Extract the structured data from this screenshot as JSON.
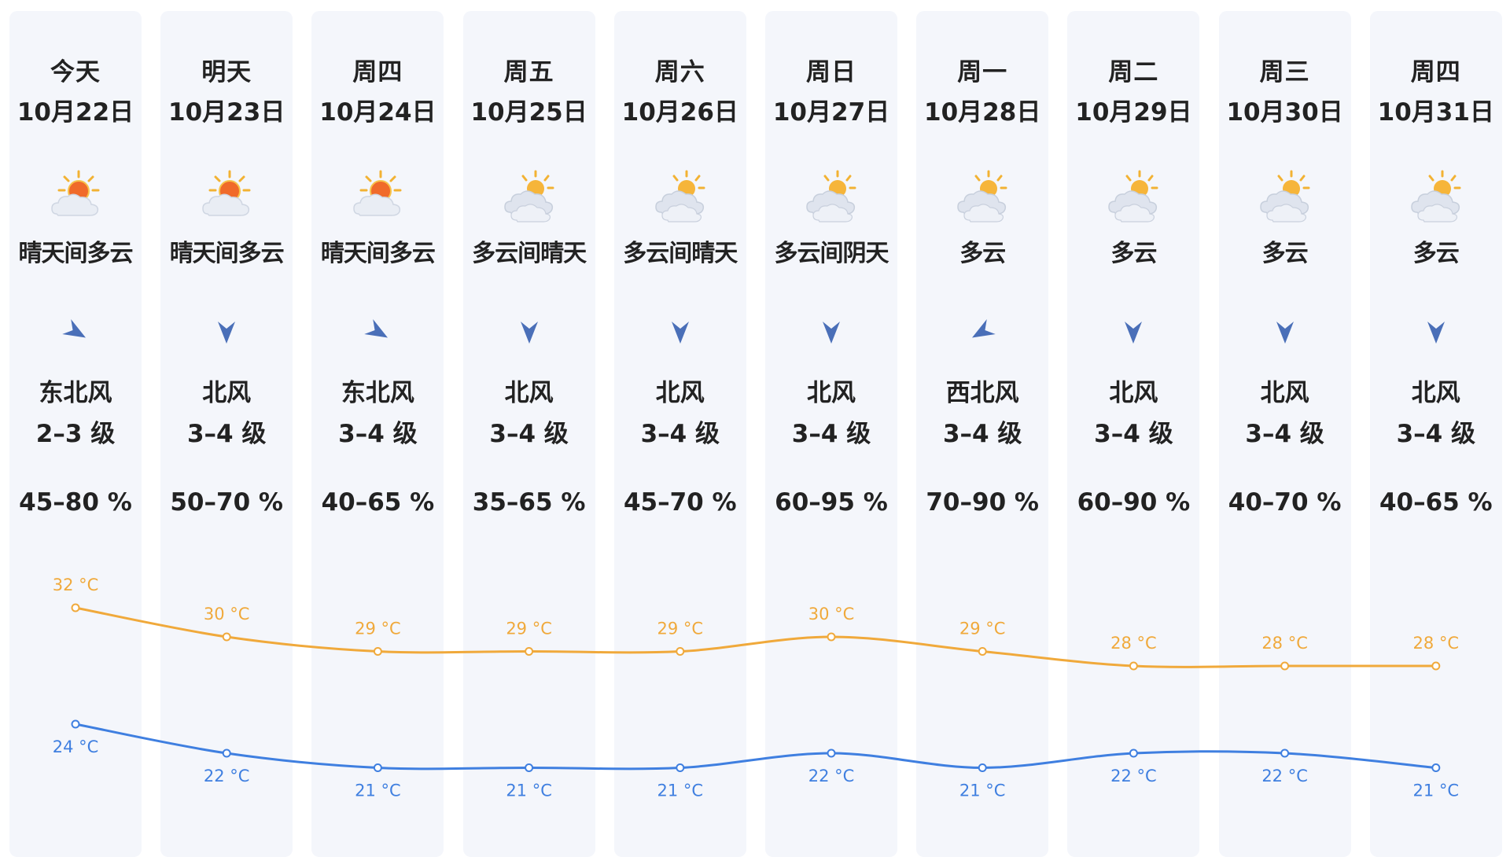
{
  "colors": {
    "high": "#f0a93b",
    "low": "#3f7fe0",
    "arrow": "#4a6fb8",
    "column_bg": "#f4f6fb"
  },
  "days": [
    {
      "weekday": "今天",
      "date": "10月22日",
      "icon": "sun-cloud-icon",
      "condition": "晴天间多云",
      "wind_dir": "东北风",
      "wind_arrow": "arrow-northeast-icon",
      "wind_rot": 300,
      "wind_level": "2–3 级",
      "humidity": "45–80 %",
      "high": "32 °C",
      "low": "24 °C"
    },
    {
      "weekday": "明天",
      "date": "10月23日",
      "icon": "sun-cloud-icon",
      "condition": "晴天间多云",
      "wind_dir": "北风",
      "wind_arrow": "arrow-north-icon",
      "wind_rot": 0,
      "wind_level": "3–4 级",
      "humidity": "50–70 %",
      "high": "30 °C",
      "low": "22 °C"
    },
    {
      "weekday": "周四",
      "date": "10月24日",
      "icon": "sun-cloud-icon",
      "condition": "晴天间多云",
      "wind_dir": "东北风",
      "wind_arrow": "arrow-northeast-icon",
      "wind_rot": 300,
      "wind_level": "3–4 级",
      "humidity": "40–65 %",
      "high": "29 °C",
      "low": "21 °C"
    },
    {
      "weekday": "周五",
      "date": "10月25日",
      "icon": "cloud-sun-icon",
      "condition": "多云间晴天",
      "wind_dir": "北风",
      "wind_arrow": "arrow-north-icon",
      "wind_rot": 0,
      "wind_level": "3–4 级",
      "humidity": "35–65 %",
      "high": "29 °C",
      "low": "21 °C"
    },
    {
      "weekday": "周六",
      "date": "10月26日",
      "icon": "cloud-sun-icon",
      "condition": "多云间晴天",
      "wind_dir": "北风",
      "wind_arrow": "arrow-north-icon",
      "wind_rot": 0,
      "wind_level": "3–4 级",
      "humidity": "45–70 %",
      "high": "29 °C",
      "low": "21 °C"
    },
    {
      "weekday": "周日",
      "date": "10月27日",
      "icon": "cloud-sun-icon",
      "condition": "多云间阴天",
      "wind_dir": "北风",
      "wind_arrow": "arrow-north-icon",
      "wind_rot": 0,
      "wind_level": "3–4 级",
      "humidity": "60–95 %",
      "high": "30 °C",
      "low": "22 °C"
    },
    {
      "weekday": "周一",
      "date": "10月28日",
      "icon": "cloud-sun-icon",
      "condition": "多云",
      "wind_dir": "西北风",
      "wind_arrow": "arrow-northwest-icon",
      "wind_rot": 60,
      "wind_level": "3–4 级",
      "humidity": "70–90 %",
      "high": "29 °C",
      "low": "21 °C"
    },
    {
      "weekday": "周二",
      "date": "10月29日",
      "icon": "cloud-sun-icon",
      "condition": "多云",
      "wind_dir": "北风",
      "wind_arrow": "arrow-north-icon",
      "wind_rot": 0,
      "wind_level": "3–4 级",
      "humidity": "60–90 %",
      "high": "28 °C",
      "low": "22 °C"
    },
    {
      "weekday": "周三",
      "date": "10月30日",
      "icon": "cloud-sun-icon",
      "condition": "多云",
      "wind_dir": "北风",
      "wind_arrow": "arrow-north-icon",
      "wind_rot": 0,
      "wind_level": "3–4 级",
      "humidity": "40–70 %",
      "high": "28 °C",
      "low": "22 °C"
    },
    {
      "weekday": "周四",
      "date": "10月31日",
      "icon": "cloud-sun-icon",
      "condition": "多云",
      "wind_dir": "北风",
      "wind_arrow": "arrow-north-icon",
      "wind_rot": 0,
      "wind_level": "3–4 级",
      "humidity": "40–65 %",
      "high": "28 °C",
      "low": "21 °C"
    }
  ],
  "chart_data": {
    "type": "line",
    "x": [
      "10月22日",
      "10月23日",
      "10月24日",
      "10月25日",
      "10月26日",
      "10月27日",
      "10月28日",
      "10月29日",
      "10月30日",
      "10月31日"
    ],
    "series": [
      {
        "values": [
          32,
          30,
          29,
          29,
          29,
          30,
          29,
          28,
          28,
          28
        ]
      },
      {
        "values": [
          24,
          22,
          21,
          21,
          21,
          22,
          21,
          22,
          22,
          21
        ]
      }
    ]
  }
}
